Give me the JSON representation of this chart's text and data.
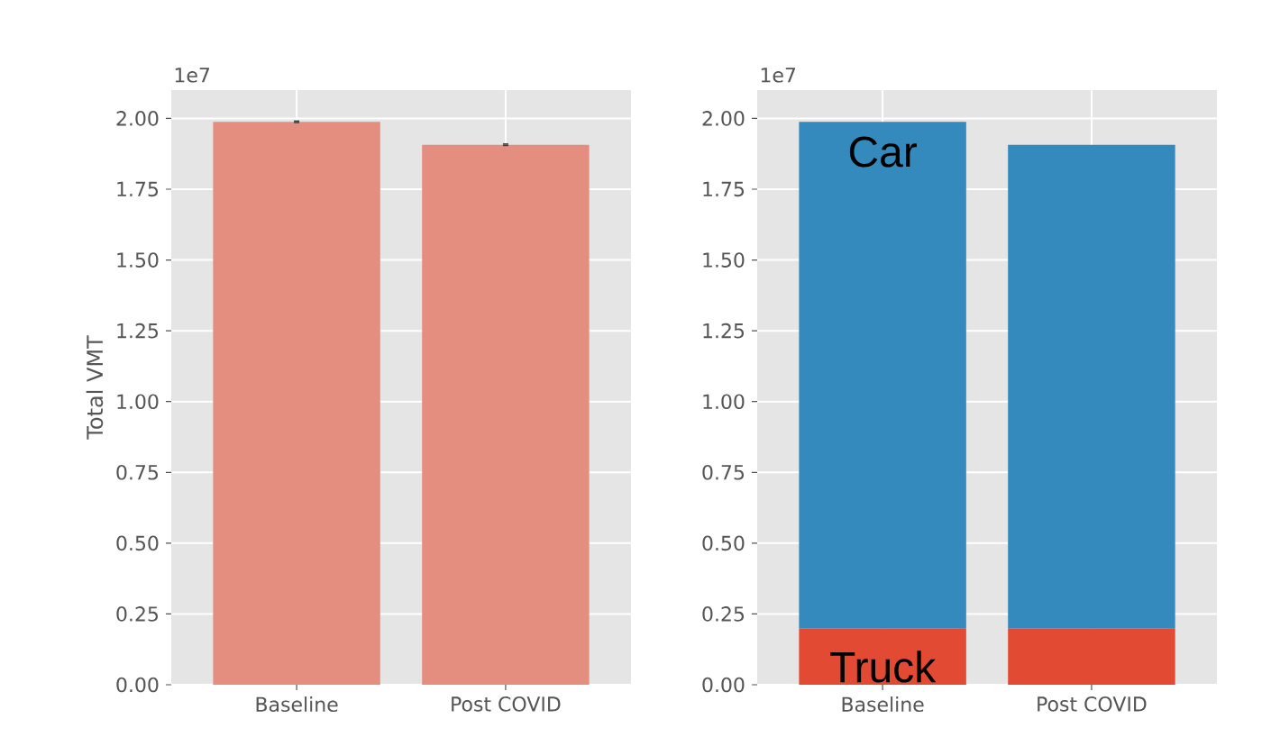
{
  "chart_data": [
    {
      "type": "bar",
      "categories": [
        "Baseline",
        "Post COVID"
      ],
      "values": [
        1.988,
        1.907
      ],
      "errors": [
        0.005,
        0.005
      ],
      "color": "#e48e80",
      "ylabel": "Total VMT",
      "ylim": [
        0,
        2.1
      ],
      "yticks": [
        {
          "value": 0,
          "label": "0.00"
        },
        {
          "value": 0.25,
          "label": "0.25"
        },
        {
          "value": 0.5,
          "label": "0.50"
        },
        {
          "value": 0.75,
          "label": "0.75"
        },
        {
          "value": 1,
          "label": "1.00"
        },
        {
          "value": 1.25,
          "label": "1.25"
        },
        {
          "value": 1.5,
          "label": "1.50"
        },
        {
          "value": 1.75,
          "label": "1.75"
        },
        {
          "value": 2,
          "label": "2.00"
        }
      ],
      "grid": true,
      "legend": false,
      "annotations": [
        "1e7"
      ]
    },
    {
      "type": "bar",
      "stacked": true,
      "categories": [
        "Baseline",
        "Post COVID"
      ],
      "series": [
        {
          "name": "Truck",
          "color": "#e24a33",
          "values": [
            0.2,
            0.2
          ]
        },
        {
          "name": "Car",
          "color": "#348abd",
          "values": [
            1.788,
            1.707
          ]
        }
      ],
      "ylim": [
        0,
        2.1
      ],
      "yticks": [
        {
          "value": 0,
          "label": "0.00"
        },
        {
          "value": 0.25,
          "label": "0.25"
        },
        {
          "value": 0.5,
          "label": "0.50"
        },
        {
          "value": 0.75,
          "label": "0.75"
        },
        {
          "value": 1,
          "label": "1.00"
        },
        {
          "value": 1.25,
          "label": "1.25"
        },
        {
          "value": 1.5,
          "label": "1.50"
        },
        {
          "value": 1.75,
          "label": "1.75"
        },
        {
          "value": 2,
          "label": "2.00"
        }
      ],
      "grid": true,
      "legend": false,
      "annotations": [
        "1e7"
      ]
    }
  ]
}
